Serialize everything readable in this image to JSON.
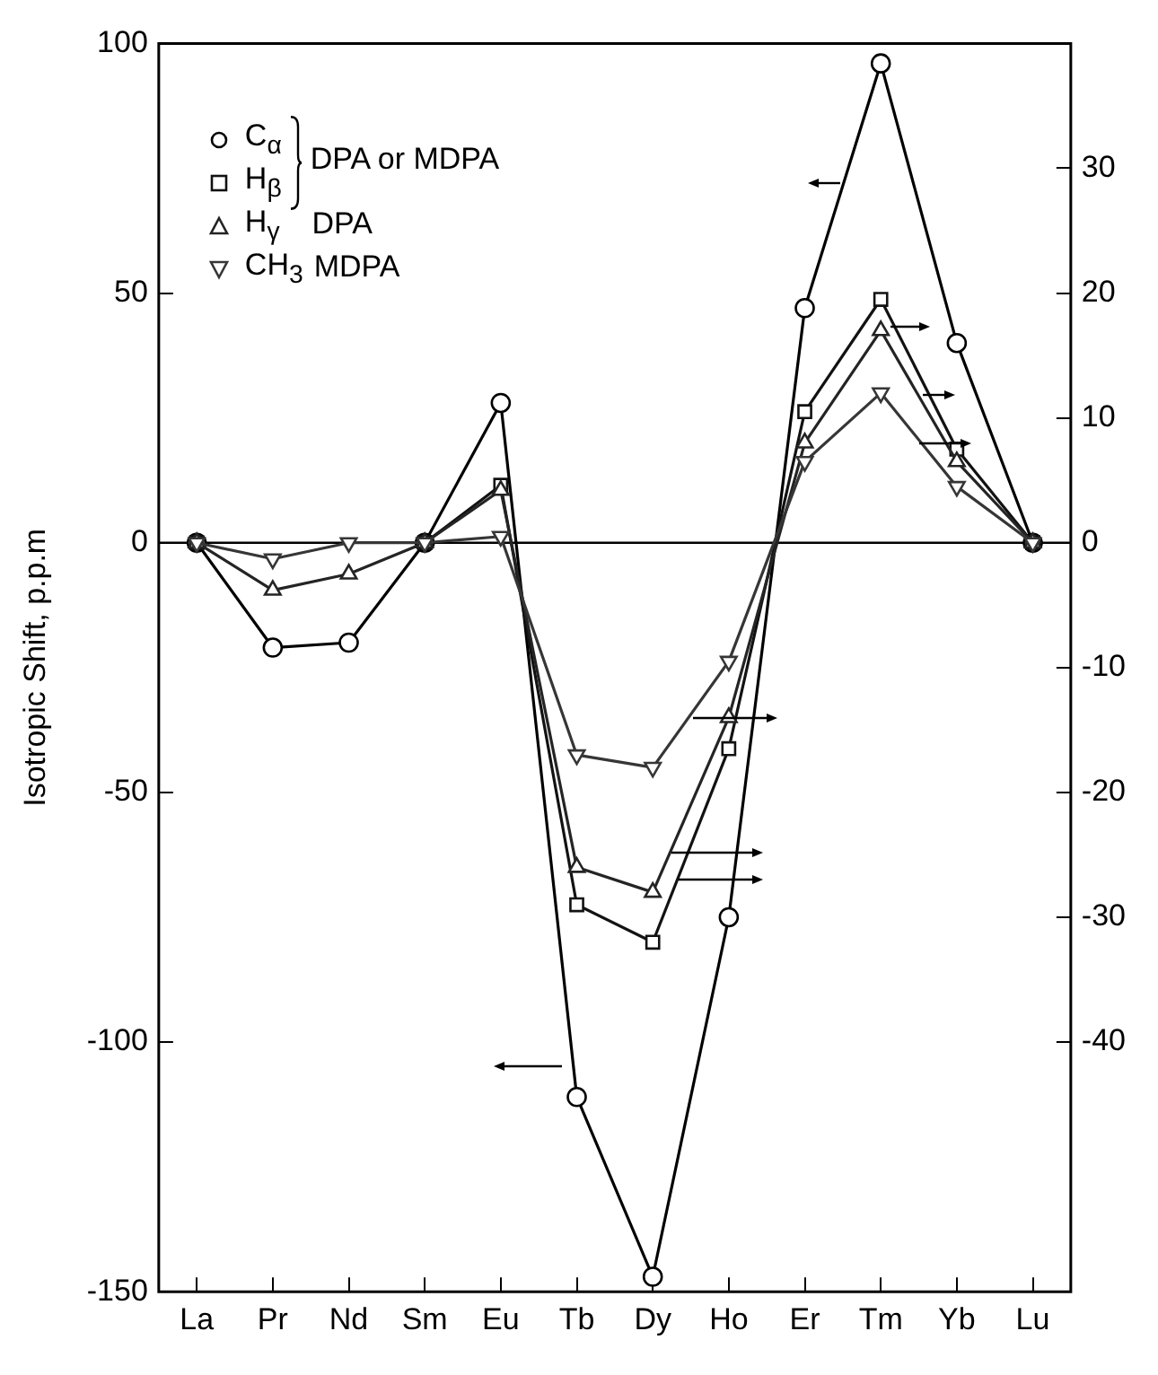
{
  "chart_data": {
    "type": "line",
    "ylabel": "Isotropic Shift, p.p.m",
    "categories": [
      "La",
      "Pr",
      "Nd",
      "Sm",
      "Eu",
      "Tb",
      "Dy",
      "Ho",
      "Er",
      "Tm",
      "Yb",
      "Lu"
    ],
    "series": [
      {
        "name": "C$_{α}$",
        "color": "#000000",
        "marker": "circle",
        "values": [
          0,
          -21,
          -20,
          0,
          28,
          -111,
          -147,
          -75,
          47,
          96,
          40,
          0
        ]
      },
      {
        "name": "H$_{β}$",
        "color": "#121212",
        "marker": "square",
        "axis": "y2",
        "values": [
          0,
          null,
          null,
          0,
          4.6,
          -29,
          -32,
          -16.5,
          10.5,
          19.5,
          7.5,
          0
        ]
      },
      {
        "name": "H$_{γ}$",
        "color": "#242424",
        "marker": "triangle",
        "axis": "y2",
        "values": [
          0,
          -3.8,
          -2.5,
          0,
          4.2,
          -26,
          -28,
          -14,
          8,
          17,
          6.5,
          0
        ]
      },
      {
        "name": "CH$_{3}$",
        "color": "#363636",
        "marker": "triangle-down",
        "axis": "y2",
        "values": [
          0,
          -1.3,
          0,
          0,
          0.5,
          -17,
          -18,
          -9.5,
          6.5,
          12,
          4.5,
          0
        ]
      }
    ],
    "ylim": [
      -150,
      100
    ],
    "yticks": [
      -150,
      -100,
      -50,
      0,
      50,
      100
    ],
    "y2lim": [
      -60,
      40
    ],
    "y2ticks": [
      -40,
      -30,
      -20,
      -10,
      0,
      10,
      20,
      30
    ],
    "ref_lines": [
      {
        "axis": "y",
        "value": 0
      }
    ],
    "annotations": [
      "DPA or MDPA",
      "DPA",
      "MDPA"
    ],
    "legend": "top left",
    "grid": false,
    "line_style": "solid"
  }
}
